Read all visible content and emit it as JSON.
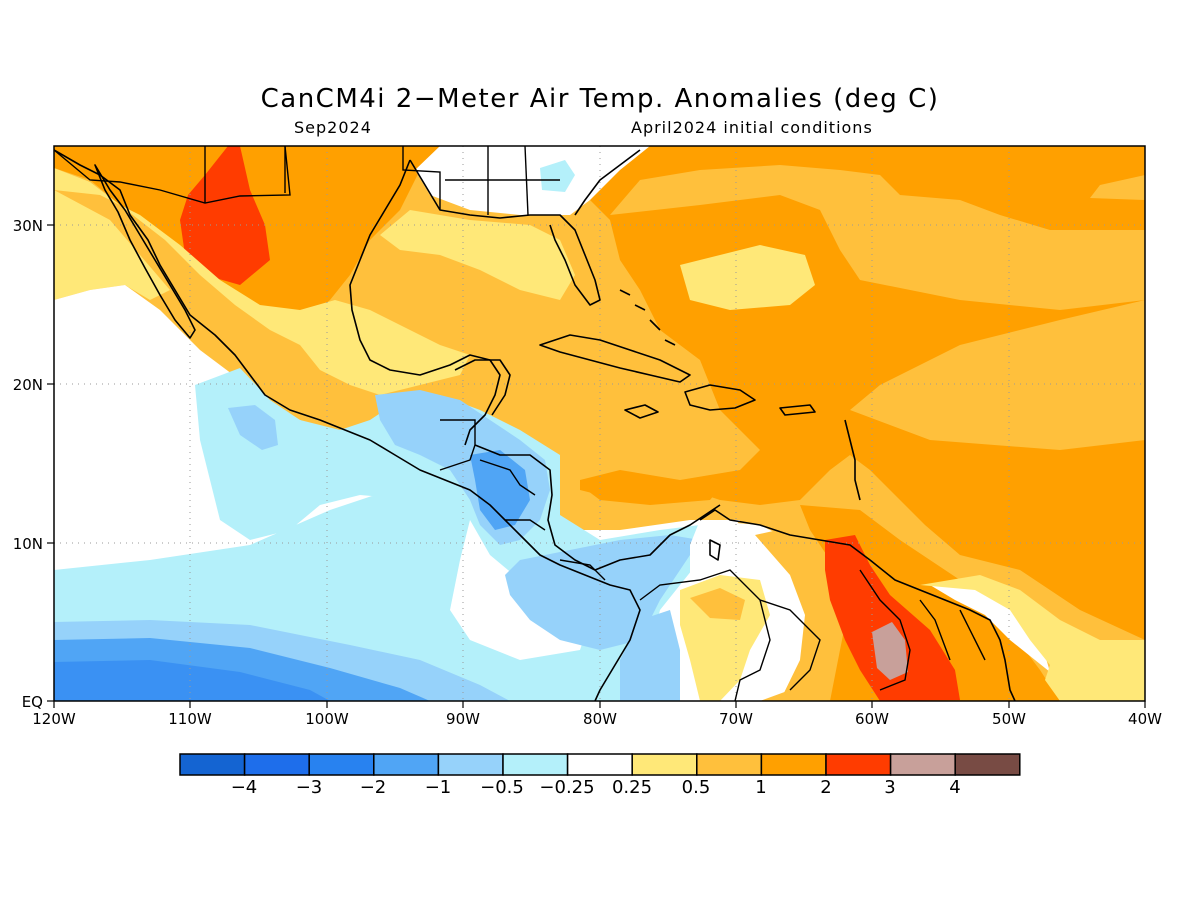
{
  "title": "CanCM4i 2−Meter Air Temp. Anomalies (deg C)",
  "subtitle_left": "Sep2024",
  "subtitle_right": "April2024 initial conditions",
  "axes": {
    "x_ticks": [
      "120W",
      "110W",
      "100W",
      "90W",
      "80W",
      "70W",
      "60W",
      "50W",
      "40W"
    ],
    "y_ticks": [
      "EQ",
      "10N",
      "20N",
      "30N"
    ]
  },
  "colorbar": {
    "colors": [
      "#1464d2",
      "#1e6eeb",
      "#2882f0",
      "#50a5f5",
      "#96d2fa",
      "#b4f0fa",
      "#ffffff",
      "#ffe878",
      "#ffc03c",
      "#ffa000",
      "#ff3c00",
      "#c8a09a",
      "#784b44"
    ],
    "labels": [
      "−4",
      "−3",
      "−2",
      "−1",
      "−0.5",
      "−0.25",
      "0.25",
      "0.5",
      "1",
      "2",
      "3",
      "4"
    ]
  }
}
